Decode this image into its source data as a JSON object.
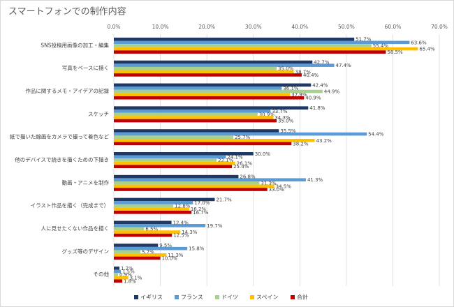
{
  "chart_data": {
    "type": "bar",
    "orientation": "horizontal",
    "title": "スマートフォンでの制作内容",
    "categories": [
      "SNS投稿用画像の加工・編集",
      "写真をベースに描く",
      "作品に関するメモ・アイデアの記録",
      "スケッチ",
      "紙で描いた線画をカメラで撮って着色など",
      "他のデバイスで続きを描くための下描き",
      "動画・アニメを制作",
      "イラスト作品を描く（完成まで）",
      "人に見せたくない作品を描く",
      "グッズ等のデザイン",
      "その他"
    ],
    "series": [
      {
        "name": "イギリス",
        "color": "#203864",
        "values": [
          51.7,
          42.7,
          42.4,
          41.8,
          35.5,
          30.0,
          26.8,
          21.7,
          12.4,
          9.5,
          1.2
        ],
        "value_labels": [
          "51.7%",
          "42.7%",
          "42.4%",
          "41.8%",
          "35.5%",
          "30.0%",
          "26.8%",
          "21.7%",
          "12.4%",
          "9.5%",
          "1.2%"
        ]
      },
      {
        "name": "フランス",
        "color": "#5b9bd5",
        "values": [
          63.6,
          47.4,
          36.1,
          33.7,
          54.4,
          24.1,
          41.3,
          17.0,
          19.7,
          15.8,
          1.5
        ],
        "value_labels": [
          "63.6%",
          "47.4%",
          "36.1%",
          "33.7%",
          "54.4%",
          "24.1%",
          "41.3%",
          "17.0%",
          "19.7%",
          "15.8%",
          "1.5%"
        ]
      },
      {
        "name": "ドイツ",
        "color": "#a9d18e",
        "values": [
          55.4,
          35.0,
          44.9,
          30.9,
          25.7,
          22.1,
          31.3,
          12.8,
          6.5,
          5.7,
          0.9
        ],
        "value_labels": [
          "55.4%",
          "35.0%",
          "44.9%",
          "30.9%",
          "25.7%",
          "22.1%",
          "31.3%",
          "12.8%",
          "6.5%",
          "5.7%",
          "0.9%"
        ]
      },
      {
        "name": "スペイン",
        "color": "#ffc000",
        "values": [
          65.4,
          38.7,
          37.9,
          34.3,
          43.2,
          26.1,
          34.5,
          16.2,
          14.3,
          11.3,
          3.1
        ],
        "value_labels": [
          "65.4%",
          "38.7%",
          "37.9%",
          "34.3%",
          "43.2%",
          "26.1%",
          "34.5%",
          "16.2%",
          "14.3%",
          "11.3%",
          "3.1%"
        ]
      },
      {
        "name": "合計",
        "color": "#c00000",
        "values": [
          58.5,
          40.4,
          40.9,
          35.0,
          38.2,
          25.4,
          33.0,
          16.7,
          12.5,
          10.0,
          1.8
        ],
        "value_labels": [
          "58.5%",
          "40.4%",
          "40.9%",
          "35.0%",
          "38.2%",
          "25.4%",
          "33.0%",
          "16.7%",
          "12.5%",
          "10.0%",
          "1.8%"
        ]
      }
    ],
    "xlim": [
      0,
      70
    ],
    "xticks": [
      {
        "value": 0,
        "label": "0.0%"
      },
      {
        "value": 10,
        "label": "10.0%"
      },
      {
        "value": 20,
        "label": "20.0%"
      },
      {
        "value": 30,
        "label": "30.0%"
      },
      {
        "value": 40,
        "label": "40.0%"
      },
      {
        "value": 50,
        "label": "50.0%"
      },
      {
        "value": 60,
        "label": "60.0%"
      },
      {
        "value": 70,
        "label": "70.0%"
      }
    ],
    "grid": true,
    "legend": "bottom"
  }
}
